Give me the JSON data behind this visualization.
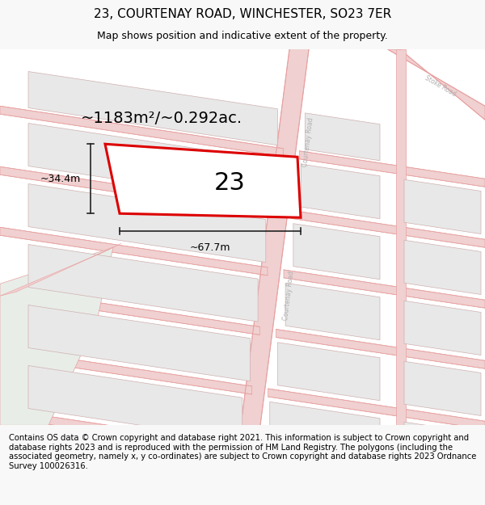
{
  "title": "23, COURTENAY ROAD, WINCHESTER, SO23 7ER",
  "subtitle": "Map shows position and indicative extent of the property.",
  "footer": "Contains OS data © Crown copyright and database right 2021. This information is subject to Crown copyright and database rights 2023 and is reproduced with the permission of HM Land Registry. The polygons (including the associated geometry, namely x, y co-ordinates) are subject to Crown copyright and database rights 2023 Ordnance Survey 100026316.",
  "area_text": "~1183m²/~0.292ac.",
  "width_text": "~67.7m",
  "height_text": "~34.4m",
  "property_number": "23",
  "map_bg": "#ffffff",
  "road_line_color": "#e8a0a0",
  "road_fill_color": "#f0d0d0",
  "block_fill": "#e8e8e8",
  "block_edge": "#d0b0b0",
  "highlight_fill": "#ffffff",
  "highlight_stroke": "#dd0000",
  "green_fill": "#e8ede8",
  "road_label_color": "#b0b0b0",
  "dim_line_color": "#222222",
  "title_fontsize": 11,
  "subtitle_fontsize": 9,
  "footer_fontsize": 7.2,
  "area_fontsize": 14,
  "dim_fontsize": 9,
  "prop_num_fontsize": 22
}
